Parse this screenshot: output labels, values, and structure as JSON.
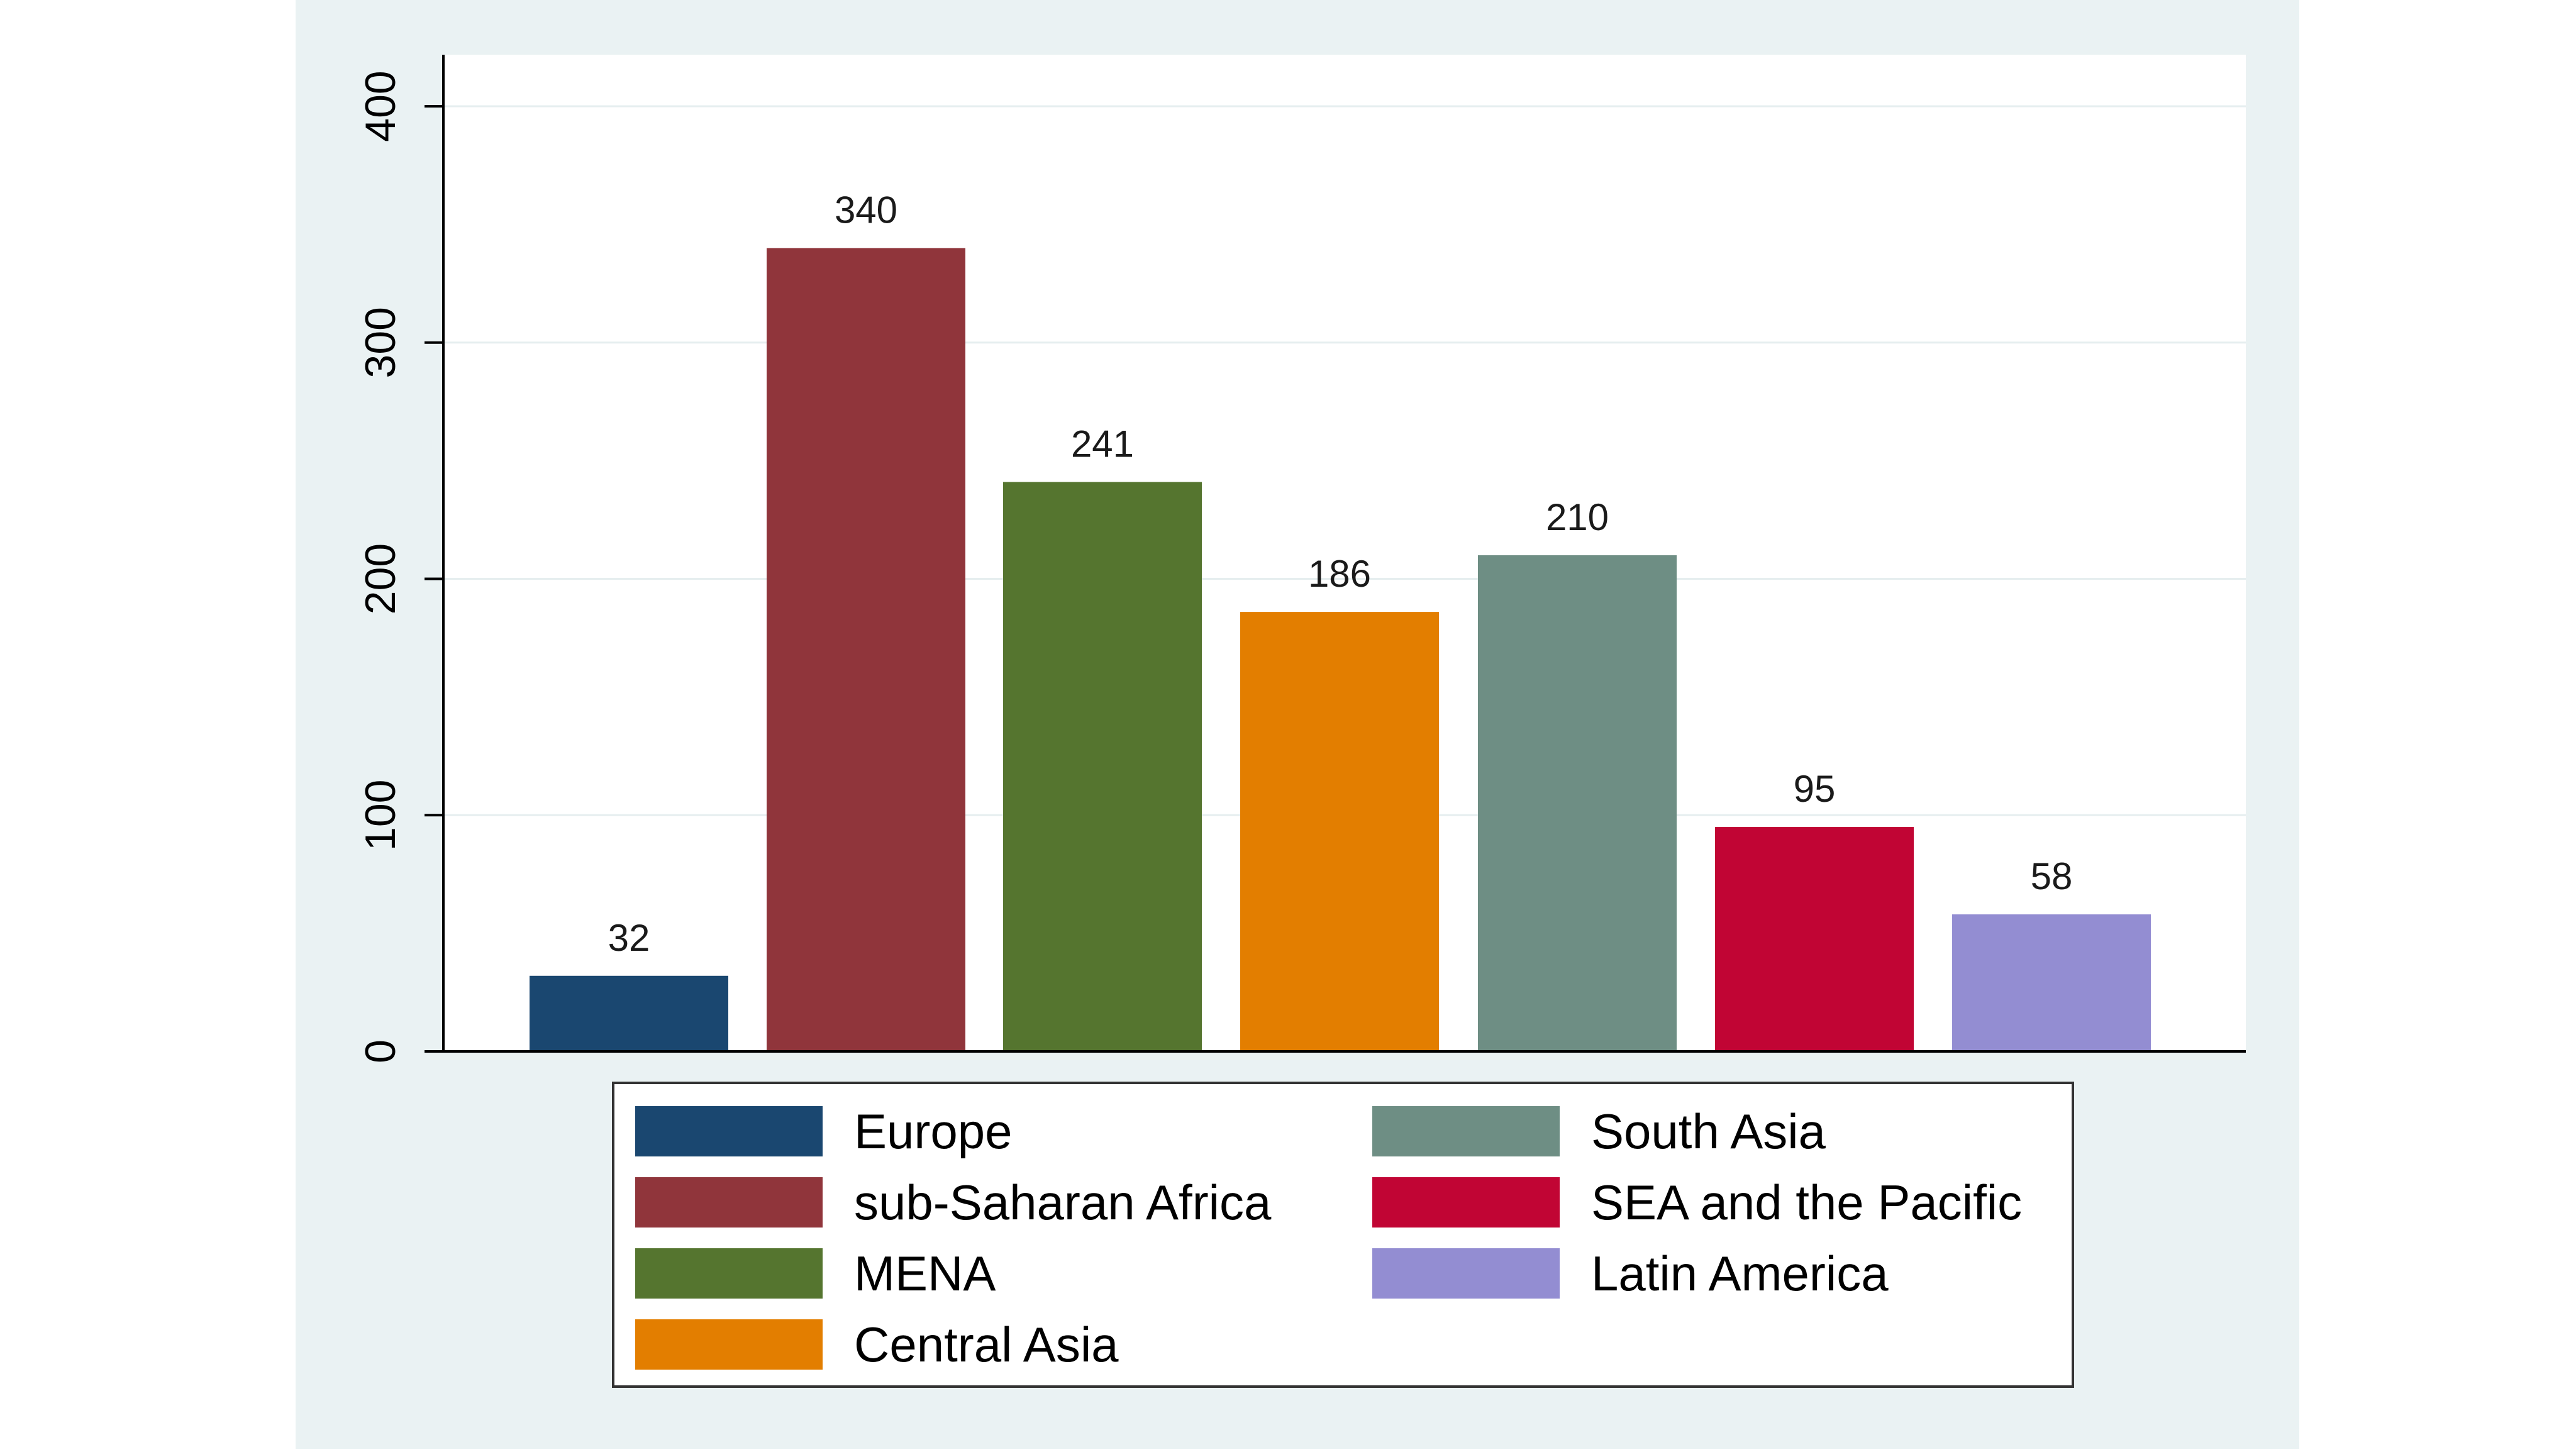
{
  "chart_data": {
    "type": "bar",
    "title": "",
    "xlabel": "",
    "ylabel": "",
    "ylim": [
      0,
      420
    ],
    "yticks": [
      0,
      100,
      200,
      300,
      400
    ],
    "grid": true,
    "legend_position": "bottom",
    "categories": [
      "Europe",
      "sub-Saharan Africa",
      "MENA",
      "Central Asia",
      "South Asia",
      "SEA and the Pacific",
      "Latin America"
    ],
    "values": [
      32,
      340,
      241,
      186,
      210,
      95,
      58
    ],
    "data_labels": [
      "32",
      "340",
      "241",
      "186",
      "210",
      "95",
      "58"
    ],
    "colors": [
      "#1a4770",
      "#90353b",
      "#55752f",
      "#e37e00",
      "#6e8e84",
      "#c10534",
      "#938dd2"
    ],
    "background_color": "#eaf2f3",
    "plot_color": "#ffffff"
  }
}
